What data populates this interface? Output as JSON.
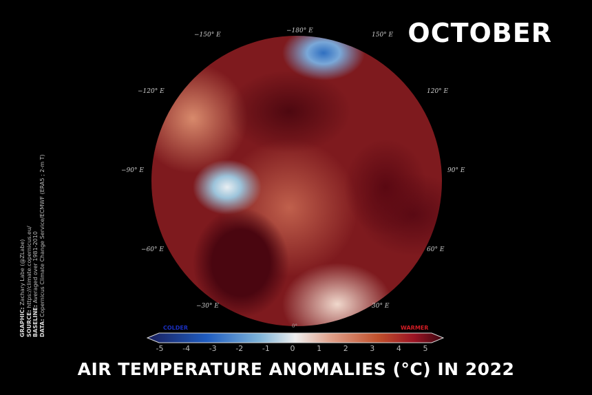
{
  "month": "OCTOBER",
  "title": "AIR TEMPERATURE ANOMALIES (°C) IN 2022",
  "longitude_labels": [
    "−180° E",
    "150° E",
    "120° E",
    "90° E",
    "60° E",
    "30° E",
    "0°",
    "−30° E",
    "−60° E",
    "−90° E",
    "−120° E",
    "−150° E"
  ],
  "colorbar": {
    "colder_label": "COLDER",
    "warmer_label": "WARMER",
    "ticks": [
      "-5",
      "-4",
      "-3",
      "-2",
      "-1",
      "0",
      "1",
      "2",
      "3",
      "4",
      "5"
    ],
    "range": [
      -5,
      5
    ],
    "colors": [
      "#1a1f5c",
      "#1f5cc0",
      "#7fb4d8",
      "#eeeeee",
      "#e0a08a",
      "#c0502c",
      "#9c1424",
      "#3a0610"
    ]
  },
  "credits": {
    "graphic_key": "GRAPHIC:",
    "graphic": " Zachary Labe (@ZLabe)",
    "source_key": "SOURCE:",
    "source": " https://climate.copernicus.eu/",
    "baseline_key": "BASELINE:",
    "baseline": " Averaged over 1981-2010",
    "data_key": "DATA:",
    "data": " Copernicus Climate Change Service/ECMWF (ERA5 ; 2-m T)"
  }
}
